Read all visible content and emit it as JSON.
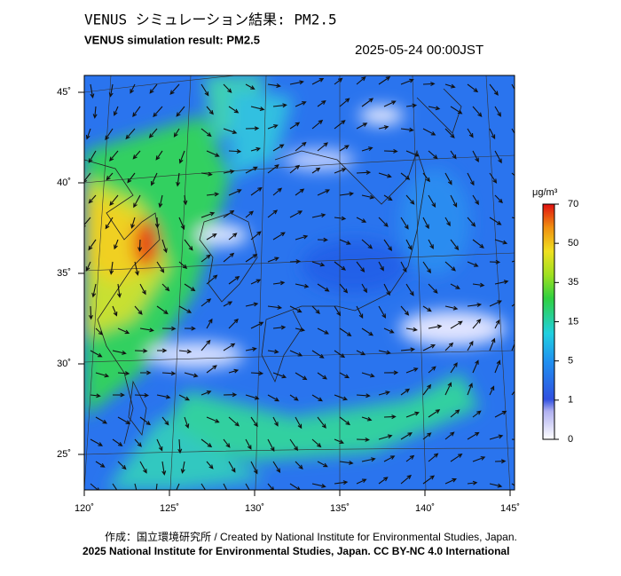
{
  "header": {
    "title": "VENUS シミュレーション結果: PM2.5",
    "subtitle": "VENUS simulation result: PM2.5",
    "timestamp": "2025-05-24 00:00JST"
  },
  "map": {
    "lat_labels": [
      "45˚",
      "40˚",
      "35˚",
      "30˚",
      "25˚"
    ],
    "lon_labels": [
      "120˚",
      "125˚",
      "130˚",
      "135˚",
      "140˚",
      "145˚"
    ]
  },
  "colorbar": {
    "unit": "μg/m³",
    "ticks": [
      "70",
      "50",
      "35",
      "15",
      "5",
      "1",
      "0"
    ]
  },
  "footer": {
    "credit": "作成：国立環境研究所 / Created by National Institute for Environmental Studies, Japan.",
    "license": "2025 National Institute for Environmental Studies, Japan. CC BY-NC 4.0 International"
  }
}
